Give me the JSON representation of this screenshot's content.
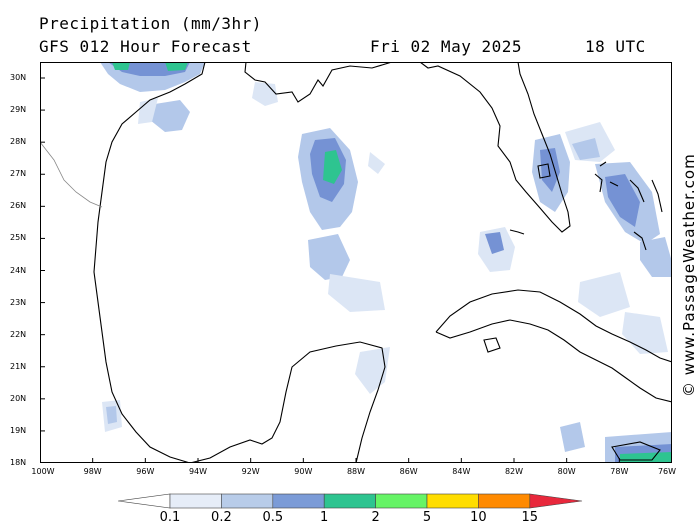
{
  "header": {
    "title": "Precipitation (mm/3hr)",
    "model": "GFS 012 Hour Forecast",
    "date": "Fri 02 May 2025",
    "time": "18 UTC"
  },
  "credit": "© www.PassageWeather.com",
  "axes": {
    "lat_labels": [
      "30N",
      "29N",
      "28N",
      "27N",
      "26N",
      "25N",
      "24N",
      "23N",
      "22N",
      "21N",
      "20N",
      "19N",
      "18N"
    ],
    "lon_labels": [
      "100W",
      "98W",
      "96W",
      "94W",
      "92W",
      "90W",
      "88W",
      "86W",
      "84W",
      "82W",
      "80W",
      "78W",
      "76W"
    ]
  },
  "legend": {
    "labels": [
      "0.1",
      "0.2",
      "0.5",
      "1",
      "2",
      "5",
      "10",
      "15"
    ],
    "colors": [
      "#ffffff",
      "#e6edf8",
      "#b8cce9",
      "#7b9bd7",
      "#2ec490",
      "#66f466",
      "#ffdd00",
      "#ff8a00",
      "#e8283c"
    ]
  },
  "colors": {
    "coast": "#000000",
    "border": "#888888",
    "light_precip": "#dce6f5",
    "mid_precip": "#b3c8ea",
    "heavy_precip": "#7592d4",
    "intense_precip": "#2ec490"
  }
}
